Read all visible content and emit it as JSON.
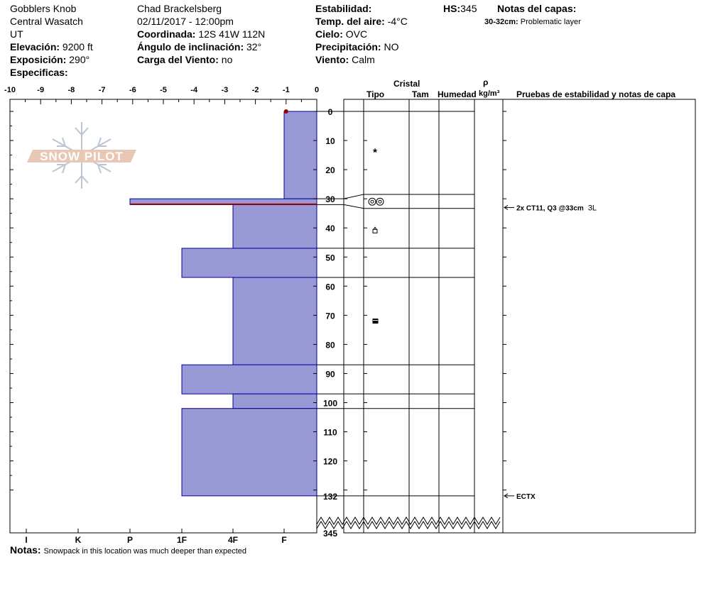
{
  "header": {
    "location": "Gobblers Knob",
    "range": "Central Wasatch",
    "state": "UT",
    "elevation_label": "Elevación:",
    "elevation_value": "9200 ft",
    "aspect_label": "Exposición:",
    "aspect_value": "290°",
    "specifics_label": "Especificas:",
    "observer": "Chad Brackelsberg",
    "datetime": "02/11/2017 - 12:00pm",
    "coord_label": "Coordinada:",
    "coord_value": "12S 41W 112N",
    "slope_label": "Ángulo de inclinación:",
    "slope_value": "32°",
    "windload_label": "Carga del Viento:",
    "windload_value": "no",
    "stability_label": "Estabilidad:",
    "airtemp_label": "Temp. del aire:",
    "airtemp_value": "-4°C",
    "sky_label": "Cielo:",
    "sky_value": "OVC",
    "precip_label": "Precipitación:",
    "precip_value": "NO",
    "wind_label": "Viento:",
    "wind_value": "Calm",
    "hs_label": "HS:",
    "hs_value": "345",
    "layer_notes_label": "Notas del capas:",
    "layer_note_range": "30-32cm:",
    "layer_note_text": "Problematic layer"
  },
  "columns": {
    "crystal": "Cristal",
    "type": "Tipo",
    "size": "Tam",
    "moisture": "Humedad",
    "rho": "ρ",
    "density_unit": "kg/m³",
    "tests": "Pruebas de estabilidad y notas de capa"
  },
  "notes": {
    "label": "Notas:",
    "text": "Snowpack in this location was much deeper than expected"
  },
  "logo": {
    "text": "SNOW PILOT"
  },
  "colors": {
    "fill": "#9999d6",
    "edge": "#0000a0",
    "weak": "#990000"
  },
  "chart_data": {
    "type": "bar",
    "temp_axis": {
      "min": -10,
      "max": 0,
      "ticks": [
        "-10",
        "-9",
        "-8",
        "-7",
        "-6",
        "-5",
        "-4",
        "-3",
        "-2",
        "-1",
        "0"
      ]
    },
    "hardness_axis": [
      "I",
      "K",
      "P",
      "1F",
      "4F",
      "F"
    ],
    "depth_ticks": [
      "0",
      "10",
      "20",
      "30",
      "40",
      "50",
      "60",
      "70",
      "80",
      "90",
      "100",
      "110",
      "120",
      "132",
      "345"
    ],
    "snow_surface_temp": -1,
    "layers": [
      {
        "top": 0,
        "bottom": 30,
        "hardness": "F",
        "hardness_value": 1
      },
      {
        "top": 30,
        "bottom": 32,
        "hardness": "P",
        "hardness_value": 4,
        "weak_layer": true
      },
      {
        "top": 32,
        "bottom": 47,
        "hardness": "4F",
        "hardness_value": 2
      },
      {
        "top": 47,
        "bottom": 57,
        "hardness": "1F",
        "hardness_value": 3
      },
      {
        "top": 57,
        "bottom": 87,
        "hardness": "4F",
        "hardness_value": 2
      },
      {
        "top": 87,
        "bottom": 97,
        "hardness": "1F",
        "hardness_value": 3
      },
      {
        "top": 97,
        "bottom": 102,
        "hardness": "4F",
        "hardness_value": 2
      },
      {
        "top": 102,
        "bottom": 132,
        "hardness": "1F",
        "hardness_value": 3
      }
    ],
    "grain_symbols": [
      {
        "depth": 14,
        "type": "star"
      },
      {
        "depth": 31,
        "type": "rounds"
      },
      {
        "depth": 41,
        "type": "facets"
      },
      {
        "depth": 72,
        "type": "mixed"
      }
    ],
    "tests": [
      {
        "depth": 33,
        "text": "2x CT11, Q3 @33cm",
        "extra": "3L"
      },
      {
        "depth": 132,
        "text": "ECTX",
        "extra": ""
      }
    ]
  }
}
